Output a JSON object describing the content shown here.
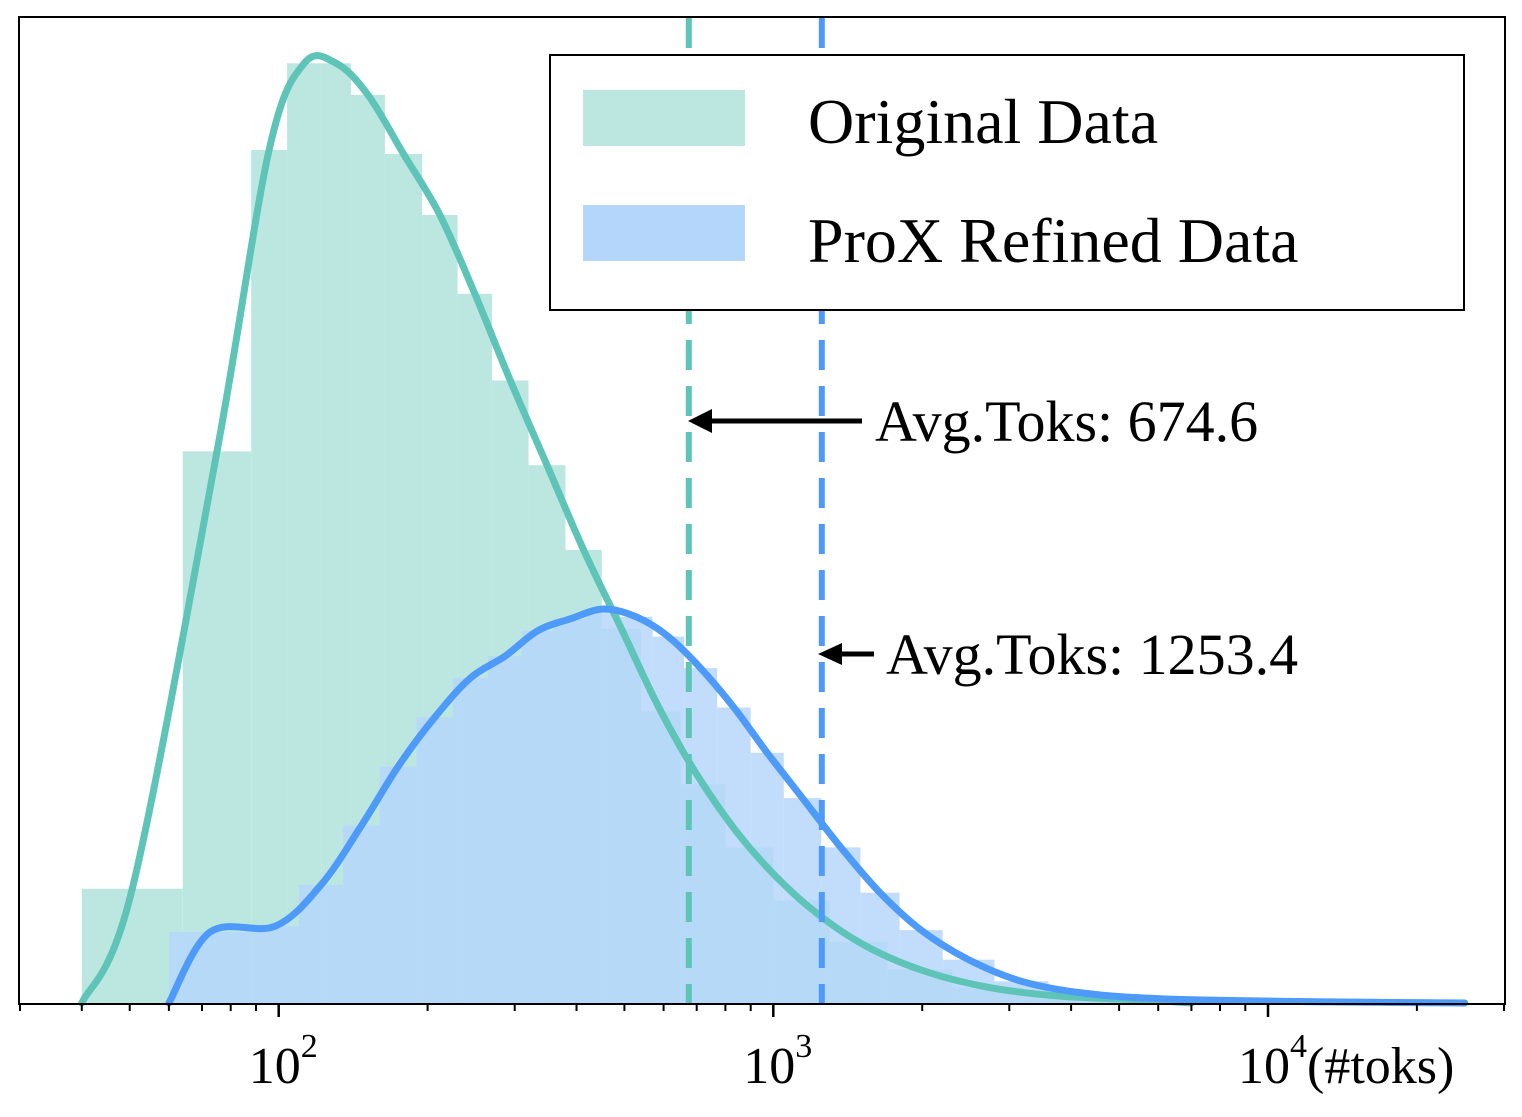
{
  "chart_data": {
    "type": "histogram",
    "x_scale": "log",
    "xlim": [
      30,
      30000
    ],
    "xlabel": "(#toks)",
    "x_ticks": [
      {
        "value": 100,
        "base": "10",
        "exp": "2",
        "suffix": ""
      },
      {
        "value": 1000,
        "base": "10",
        "exp": "3",
        "suffix": ""
      },
      {
        "value": 10000,
        "base": "10",
        "exp": "4",
        "suffix": "(#toks)"
      }
    ],
    "y_ticks_shown": false,
    "legend": {
      "placement": "top-right",
      "entries": [
        {
          "label": "Original Data",
          "color": "#bce7e1"
        },
        {
          "label": "ProX Refined Data",
          "color": "#b5d6fb"
        }
      ]
    },
    "series": [
      {
        "name": "Original Data",
        "fill_color": "#bce7e1",
        "curve_color": "#5ec4b7",
        "mean": 674.6,
        "annotation": "Avg.Toks: 674.6",
        "bins": [
          {
            "x0": 40,
            "x1": 64,
            "y": 0.116
          },
          {
            "x0": 64,
            "x1": 88,
            "y": 0.56
          },
          {
            "x0": 88,
            "x1": 104,
            "y": 0.866
          },
          {
            "x0": 104,
            "x1": 122,
            "y": 0.954
          },
          {
            "x0": 122,
            "x1": 140,
            "y": 0.954
          },
          {
            "x0": 140,
            "x1": 164,
            "y": 0.922
          },
          {
            "x0": 164,
            "x1": 195,
            "y": 0.862
          },
          {
            "x0": 195,
            "x1": 230,
            "y": 0.8
          },
          {
            "x0": 230,
            "x1": 270,
            "y": 0.72
          },
          {
            "x0": 270,
            "x1": 320,
            "y": 0.632
          },
          {
            "x0": 320,
            "x1": 380,
            "y": 0.546
          },
          {
            "x0": 380,
            "x1": 450,
            "y": 0.46
          },
          {
            "x0": 450,
            "x1": 540,
            "y": 0.38
          },
          {
            "x0": 540,
            "x1": 650,
            "y": 0.296
          },
          {
            "x0": 650,
            "x1": 800,
            "y": 0.222
          },
          {
            "x0": 800,
            "x1": 1000,
            "y": 0.158
          },
          {
            "x0": 1000,
            "x1": 1300,
            "y": 0.104
          },
          {
            "x0": 1300,
            "x1": 1700,
            "y": 0.062
          },
          {
            "x0": 1700,
            "x1": 2300,
            "y": 0.034
          },
          {
            "x0": 2300,
            "x1": 3200,
            "y": 0.016
          },
          {
            "x0": 3200,
            "x1": 4500,
            "y": 0.007
          },
          {
            "x0": 4500,
            "x1": 7000,
            "y": 0.003
          }
        ]
      },
      {
        "name": "ProX Refined Data",
        "fill_color": "#b5d6fb",
        "curve_color": "#4e9af8",
        "mean": 1253.4,
        "annotation": "Avg.Toks: 1253.4",
        "bins": [
          {
            "x0": 60,
            "x1": 88,
            "y": 0.072
          },
          {
            "x0": 88,
            "x1": 110,
            "y": 0.078
          },
          {
            "x0": 110,
            "x1": 135,
            "y": 0.12
          },
          {
            "x0": 135,
            "x1": 160,
            "y": 0.18
          },
          {
            "x0": 160,
            "x1": 190,
            "y": 0.24
          },
          {
            "x0": 190,
            "x1": 225,
            "y": 0.29
          },
          {
            "x0": 225,
            "x1": 265,
            "y": 0.33
          },
          {
            "x0": 265,
            "x1": 310,
            "y": 0.352
          },
          {
            "x0": 310,
            "x1": 360,
            "y": 0.378
          },
          {
            "x0": 360,
            "x1": 420,
            "y": 0.39
          },
          {
            "x0": 420,
            "x1": 490,
            "y": 0.4
          },
          {
            "x0": 490,
            "x1": 570,
            "y": 0.392
          },
          {
            "x0": 570,
            "x1": 660,
            "y": 0.372
          },
          {
            "x0": 660,
            "x1": 770,
            "y": 0.34
          },
          {
            "x0": 770,
            "x1": 900,
            "y": 0.3
          },
          {
            "x0": 900,
            "x1": 1050,
            "y": 0.254
          },
          {
            "x0": 1050,
            "x1": 1250,
            "y": 0.208
          },
          {
            "x0": 1250,
            "x1": 1500,
            "y": 0.158
          },
          {
            "x0": 1500,
            "x1": 1800,
            "y": 0.112
          },
          {
            "x0": 1800,
            "x1": 2200,
            "y": 0.074
          },
          {
            "x0": 2200,
            "x1": 2800,
            "y": 0.044
          },
          {
            "x0": 2800,
            "x1": 3600,
            "y": 0.022
          },
          {
            "x0": 3600,
            "x1": 5000,
            "y": 0.01
          },
          {
            "x0": 5000,
            "x1": 8000,
            "y": 0.004
          },
          {
            "x0": 8000,
            "x1": 25000,
            "y": 0.001
          }
        ]
      }
    ]
  }
}
